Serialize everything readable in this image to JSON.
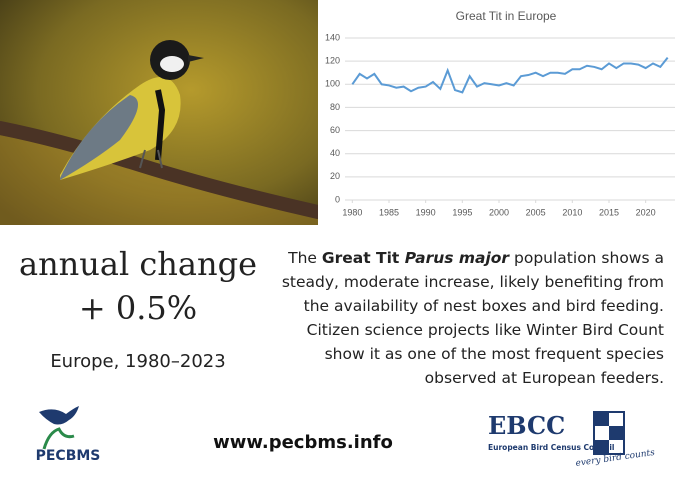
{
  "chart_data": {
    "type": "line",
    "title": "Great Tit in Europe",
    "x": [
      1980,
      1981,
      1982,
      1983,
      1984,
      1985,
      1986,
      1987,
      1988,
      1989,
      1990,
      1991,
      1992,
      1993,
      1994,
      1995,
      1996,
      1997,
      1998,
      1999,
      2000,
      2001,
      2002,
      2003,
      2004,
      2005,
      2006,
      2007,
      2008,
      2009,
      2010,
      2011,
      2012,
      2013,
      2014,
      2015,
      2016,
      2017,
      2018,
      2019,
      2020,
      2021,
      2022,
      2023
    ],
    "values": [
      100,
      109,
      105,
      109,
      100,
      99,
      97,
      98,
      94,
      97,
      98,
      102,
      96,
      112,
      95,
      93,
      107,
      98,
      101,
      100,
      99,
      101,
      99,
      107,
      108,
      110,
      107,
      110,
      110,
      109,
      113,
      113,
      116,
      115,
      113,
      118,
      114,
      118,
      118,
      117,
      114,
      118,
      115,
      123
    ],
    "color": "#5b9bd5",
    "xlim": [
      1979,
      2024
    ],
    "xticks": [
      1980,
      1985,
      1990,
      1995,
      2000,
      2005,
      2010,
      2015,
      2020
    ],
    "ylim": [
      0,
      140
    ],
    "yticks": [
      0,
      20,
      40,
      60,
      80,
      100,
      120,
      140
    ],
    "grid": true
  },
  "headline": {
    "label": "annual change",
    "value": "+ 0.5%",
    "scope": "Europe, 1980–2023"
  },
  "description": {
    "first_line": [
      "The ",
      "Great Tit ",
      "Parus major",
      " population shows a"
    ],
    "lines": [
      "steady, moderate increase, likely benefiting from",
      "the availability of nest boxes and bird feeding.",
      "Citizen science projects like Winter Bird Count",
      "show it as one of the most frequent species",
      "observed at European feeders."
    ]
  },
  "footer": {
    "left_logo": "PECBMS",
    "url": "www.pecbms.info",
    "right_logo": "EBCC",
    "right_logo_name": "European Bird Census Council",
    "right_logo_motto": "every bird counts"
  }
}
